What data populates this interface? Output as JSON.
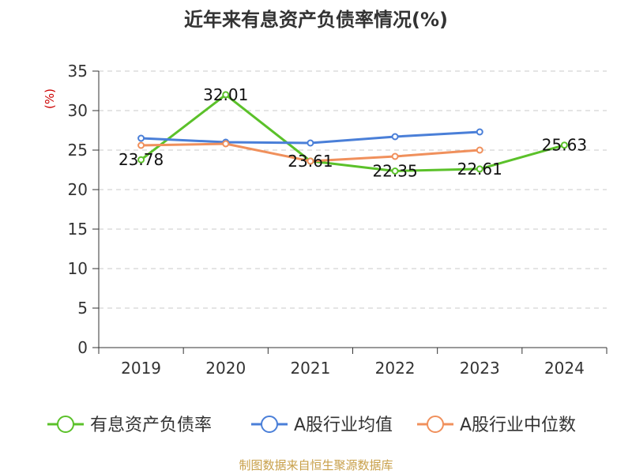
{
  "chart_data": {
    "type": "line",
    "title": "近年来有息资产负债率情况(%)",
    "ylabel": "(%)",
    "categories": [
      "2019",
      "2020",
      "2021",
      "2022",
      "2023",
      "2024"
    ],
    "ylim": [
      0,
      35
    ],
    "yticks": [
      0,
      5,
      10,
      15,
      20,
      25,
      30,
      35
    ],
    "grid": true,
    "legend_position": "bottom",
    "series": [
      {
        "name": "有息资产负债率",
        "color": "#5bc12a",
        "values": [
          23.78,
          32.01,
          23.61,
          22.35,
          22.61,
          25.63
        ],
        "labels": [
          "23.78",
          "32.01",
          "23.61",
          "22.35",
          "22.61",
          "25.63"
        ]
      },
      {
        "name": "A股行业均值",
        "color": "#4a7fd8",
        "values": [
          26.5,
          26.0,
          25.9,
          26.7,
          27.3,
          null
        ]
      },
      {
        "name": "A股行业中位数",
        "color": "#f0905c",
        "values": [
          25.6,
          25.8,
          23.6,
          24.2,
          25.0,
          null
        ]
      }
    ],
    "unit_color": "#cc0000"
  },
  "source": {
    "text": "制图数据来自恒生聚源数据库",
    "color": "#c8a04a"
  }
}
